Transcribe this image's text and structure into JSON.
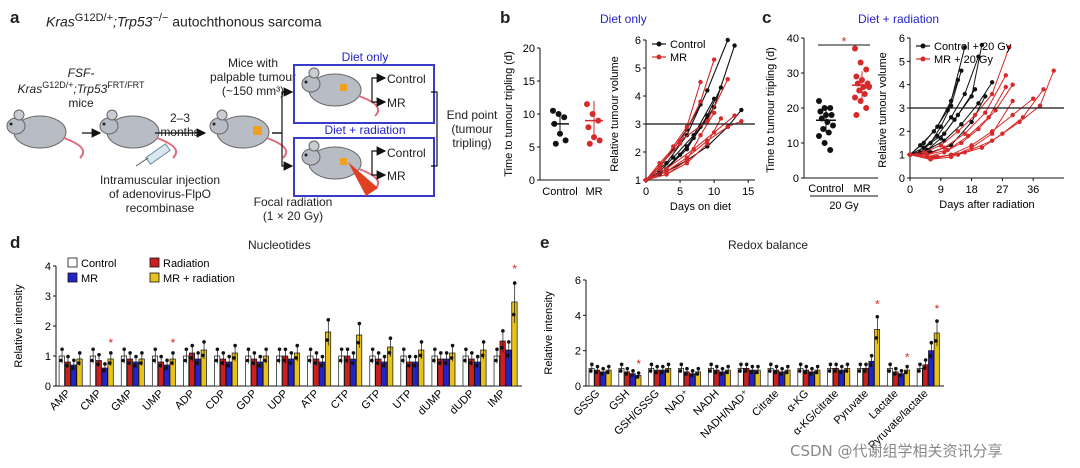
{
  "panel_a": {
    "label": "a",
    "title_prefix": "Kras",
    "title_sup1": "G12D/+",
    "title_mid": ";Trp53",
    "title_sup2": "−/−",
    "title_suffix": " autochthonous sarcoma",
    "mouse_line1_a": "FSF-Kras",
    "mouse_line1_sup1": "G12D/+",
    "mouse_line1_b": ";Trp53",
    "mouse_line1_sup2": "FRT/FRT",
    "mouse_line2": "mice",
    "arrow_label_1": "2–3",
    "arrow_label_2": "months",
    "injection_1": "Intramuscular injection",
    "injection_2": "of adenovirus-FlpO",
    "injection_3": "recombinase",
    "palpable_1": "Mice with",
    "palpable_2": "palpable tumour",
    "palpable_3": "(~150 mm³)",
    "focal_1": "Focal radiation",
    "focal_2": "(1 × 20 Gy)",
    "diet_only": "Diet only",
    "diet_radiation": "Diet + radiation",
    "control": "Control",
    "mr": "MR",
    "end_1": "End point",
    "end_2": "(tumour",
    "end_3": "tripling)"
  },
  "panel_b": {
    "label": "b",
    "title": "Diet only",
    "scatter_ylabel": "Time to tumour tripling (d)",
    "scatter_yticks": [
      "0",
      "5",
      "10",
      "15",
      "20"
    ],
    "scatter_xticks": [
      "Control",
      "MR"
    ],
    "line_ylabel": "Relative tumour volume",
    "line_yticks": [
      "1",
      "2",
      "3",
      "4",
      "5",
      "6"
    ],
    "line_xticks": [
      "0",
      "5",
      "10",
      "15"
    ],
    "line_xlabel": "Days on diet",
    "legend": [
      "Control",
      "MR"
    ]
  },
  "panel_c": {
    "label": "c",
    "title": "Diet + radiation",
    "scatter_ylabel": "Time to tumour tripling (d)",
    "scatter_yticks": [
      "0",
      "10",
      "20",
      "30",
      "40"
    ],
    "scatter_xticks": [
      "Control",
      "MR"
    ],
    "scatter_sub": "20 Gy",
    "star": "*",
    "line_ylabel": "Relative tumour volume",
    "line_yticks": [
      "0",
      "1",
      "2",
      "3",
      "4",
      "5",
      "6"
    ],
    "line_xticks": [
      "0",
      "9",
      "18",
      "27",
      "36"
    ],
    "line_xlabel": "Days after radiation",
    "legend": [
      "Control + 20 Gy",
      "MR + 20 Gy"
    ]
  },
  "panel_d": {
    "label": "d",
    "title": "Nucleotides",
    "ylabel": "Relative intensity",
    "yticks": [
      "0",
      "1",
      "2",
      "3",
      "4"
    ],
    "legend": [
      "Control",
      "Radiation",
      "MR",
      "MR + radiation"
    ],
    "categories": [
      "AMP",
      "CMP",
      "GMP",
      "UMP",
      "ADP",
      "CDP",
      "GDP",
      "UDP",
      "ATP",
      "CTP",
      "GTP",
      "UTP",
      "dUMP",
      "dUDP",
      "IMP"
    ]
  },
  "panel_e": {
    "label": "e",
    "title": "Redox balance",
    "ylabel": "Relative intensity",
    "yticks": [
      "0",
      "2",
      "4",
      "6"
    ],
    "categories": [
      "GSSG",
      "GSH",
      "GSH/GSSG",
      "NAD⁺",
      "NADH",
      "NADH/NAD⁺",
      "Citrate",
      "α-KG",
      "α-KG/citrate",
      "Pyruvate",
      "Lactate",
      "Pyruvate/lactate"
    ]
  },
  "watermark": "CSDN @代谢组学相关资讯分享",
  "colors": {
    "control": "#ffffff",
    "radiation": "#cc1f1f",
    "mr": "#2323cc",
    "mr_radiation": "#e8c21a",
    "control_line": "#111111",
    "mr_line": "#d62a2a",
    "box_blue": "#3a3ac8"
  },
  "chart_data": [
    {
      "type": "scatter",
      "panel": "b-left",
      "title": "Diet only",
      "categories": [
        "Control",
        "MR"
      ],
      "ylabel": "Time to tumour tripling (d)",
      "ylim": [
        0,
        20
      ],
      "series": [
        {
          "name": "Control",
          "values": [
            10.5,
            10,
            9.5,
            8.5,
            7,
            6,
            5.5
          ],
          "mean": 8.5,
          "sd": 1.8
        },
        {
          "name": "MR",
          "values": [
            11.5,
            10,
            9,
            8,
            6.5,
            6,
            5.5
          ],
          "mean": 9,
          "sd": 3
        }
      ]
    },
    {
      "type": "line",
      "panel": "b-right",
      "xlabel": "Days on diet",
      "ylabel": "Relative tumour volume",
      "xlim": [
        0,
        16
      ],
      "ylim": [
        0.7,
        6.2
      ],
      "reference_y": 3,
      "series": [
        {
          "name": "Control",
          "x": [
            0,
            3,
            6,
            9,
            12
          ],
          "y": [
            1,
            1.6,
            2.6,
            4.2,
            6
          ]
        },
        {
          "name": "Control",
          "x": [
            0,
            2,
            4,
            6,
            8
          ],
          "y": [
            1,
            1.5,
            2.1,
            2.8,
            3.7
          ]
        },
        {
          "name": "Control",
          "x": [
            0,
            3,
            6,
            9,
            11
          ],
          "y": [
            1,
            1.4,
            2.1,
            3.3,
            4.3
          ]
        },
        {
          "name": "Control",
          "x": [
            0,
            2,
            5,
            7,
            9
          ],
          "y": [
            1,
            1.2,
            1.9,
            2.5,
            3.2
          ]
        },
        {
          "name": "Control",
          "x": [
            0,
            3,
            6,
            9,
            12,
            14
          ],
          "y": [
            1,
            1.3,
            1.7,
            2.2,
            2.9,
            3.5
          ]
        },
        {
          "name": "Control",
          "x": [
            0,
            2,
            4,
            7,
            10
          ],
          "y": [
            1,
            1.3,
            1.8,
            2.6,
            3.9
          ]
        },
        {
          "name": "Control",
          "x": [
            0,
            3,
            6,
            8,
            10,
            13
          ],
          "y": [
            1,
            1.4,
            2.2,
            2.9,
            3.6,
            5.8
          ]
        },
        {
          "name": "MR",
          "x": [
            0,
            3,
            6,
            9,
            12,
            14
          ],
          "y": [
            1,
            1.3,
            1.8,
            2.4,
            2.9,
            3.1
          ]
        },
        {
          "name": "MR",
          "x": [
            0,
            2,
            5,
            8,
            10
          ],
          "y": [
            1,
            1.5,
            2.3,
            3.8,
            5.3
          ]
        },
        {
          "name": "MR",
          "x": [
            0,
            3,
            6,
            9,
            11
          ],
          "y": [
            1,
            1.2,
            1.6,
            2.3,
            3.2
          ]
        },
        {
          "name": "MR",
          "x": [
            0,
            2,
            4,
            6,
            8
          ],
          "y": [
            1,
            1.4,
            2.2,
            2.9,
            4.5
          ]
        },
        {
          "name": "MR",
          "x": [
            0,
            3,
            7,
            10,
            13
          ],
          "y": [
            1,
            1.4,
            2.1,
            2.7,
            3.3
          ]
        },
        {
          "name": "MR",
          "x": [
            0,
            2,
            5,
            9,
            12
          ],
          "y": [
            1,
            1.6,
            2.4,
            3.1,
            4.6
          ]
        },
        {
          "name": "MR",
          "x": [
            0,
            3,
            6,
            8,
            10
          ],
          "y": [
            1,
            1.2,
            1.7,
            2.6,
            3.4
          ]
        }
      ]
    },
    {
      "type": "scatter",
      "panel": "c-left",
      "title": "Diet + radiation",
      "categories": [
        "Control",
        "MR"
      ],
      "ylabel": "Time to tumour tripling (d)",
      "ylim": [
        0,
        40
      ],
      "series": [
        {
          "name": "Control",
          "values": [
            22,
            20,
            20,
            19,
            18,
            18,
            17,
            16,
            15,
            14,
            13,
            12,
            10,
            8
          ],
          "mean": 16.5,
          "sd": 3.5
        },
        {
          "name": "MR",
          "values": [
            37,
            33,
            31,
            29,
            28,
            27,
            27,
            26,
            26,
            25,
            24,
            23,
            22,
            20,
            18
          ],
          "mean": 26.5,
          "sd": 4
        }
      ]
    },
    {
      "type": "line",
      "panel": "c-right",
      "xlabel": "Days after radiation",
      "ylabel": "Relative tumour volume",
      "xlim": [
        0,
        45
      ],
      "ylim": [
        0,
        6.2
      ],
      "reference_y": 3,
      "series": [
        {
          "name": "Control + 20 Gy",
          "x": [
            0,
            4,
            8,
            12,
            16,
            20
          ],
          "y": [
            1,
            1.3,
            1.8,
            2.6,
            3.6,
            5.2
          ]
        },
        {
          "name": "Control + 20 Gy",
          "x": [
            0,
            3,
            6,
            9,
            12,
            15
          ],
          "y": [
            1,
            1.1,
            1.5,
            2.2,
            3.1,
            4.6
          ]
        },
        {
          "name": "Control + 20 Gy",
          "x": [
            0,
            5,
            10,
            15,
            20,
            24
          ],
          "y": [
            1,
            1.2,
            1.6,
            2.3,
            3.2,
            4.1
          ]
        },
        {
          "name": "Control + 20 Gy",
          "x": [
            0,
            4,
            8,
            12,
            16
          ],
          "y": [
            1,
            1.5,
            2.2,
            3.3,
            5.6
          ]
        },
        {
          "name": "Control + 20 Gy",
          "x": [
            0,
            6,
            12,
            18,
            22
          ],
          "y": [
            1,
            1.1,
            1.4,
            2.4,
            3.5
          ]
        },
        {
          "name": "Control + 20 Gy",
          "x": [
            0,
            3,
            7,
            11,
            14
          ],
          "y": [
            1,
            1.4,
            2,
            2.9,
            4.2
          ]
        },
        {
          "name": "Control + 20 Gy",
          "x": [
            0,
            5,
            9,
            13,
            18,
            21
          ],
          "y": [
            1,
            1.2,
            1.7,
            2.5,
            3.5,
            5.7
          ]
        },
        {
          "name": "Control + 20 Gy",
          "x": [
            0,
            4,
            10,
            14,
            19
          ],
          "y": [
            1,
            1.3,
            1.9,
            2.7,
            3.8
          ]
        },
        {
          "name": "MR + 20 Gy",
          "x": [
            0,
            5,
            10,
            15,
            20,
            25,
            30
          ],
          "y": [
            1,
            0.9,
            1.1,
            1.5,
            2.1,
            2.9,
            4
          ]
        },
        {
          "name": "MR + 20 Gy",
          "x": [
            0,
            6,
            12,
            18,
            24,
            30,
            36
          ],
          "y": [
            1,
            0.8,
            1,
            1.4,
            2,
            2.7,
            3.4
          ]
        },
        {
          "name": "MR + 20 Gy",
          "x": [
            0,
            5,
            10,
            16,
            22,
            28
          ],
          "y": [
            1,
            1,
            1.3,
            1.9,
            2.8,
            4.4
          ]
        },
        {
          "name": "MR + 20 Gy",
          "x": [
            0,
            7,
            14,
            21,
            27,
            33,
            39
          ],
          "y": [
            1,
            0.9,
            1,
            1.3,
            1.9,
            2.6,
            3.8
          ]
        },
        {
          "name": "MR + 20 Gy",
          "x": [
            0,
            4,
            9,
            14,
            19,
            24,
            29
          ],
          "y": [
            1,
            1.1,
            1.4,
            2,
            2.7,
            3.6,
            5.6
          ]
        },
        {
          "name": "MR + 20 Gy",
          "x": [
            0,
            6,
            12,
            18,
            24,
            30
          ],
          "y": [
            1,
            0.8,
            0.9,
            1.3,
            1.9,
            3.3
          ]
        },
        {
          "name": "MR + 20 Gy",
          "x": [
            0,
            8,
            16,
            24,
            32,
            38,
            42
          ],
          "y": [
            1,
            0.9,
            1.1,
            1.6,
            2.4,
            3.1,
            4.6
          ]
        },
        {
          "name": "MR + 20 Gy",
          "x": [
            0,
            5,
            11,
            17,
            23,
            28
          ],
          "y": [
            1,
            1,
            1.2,
            1.8,
            2.6,
            3.9
          ]
        }
      ]
    },
    {
      "type": "bar",
      "panel": "d",
      "title": "Nucleotides",
      "ylabel": "Relative intensity",
      "ylim": [
        0,
        4
      ],
      "categories": [
        "AMP",
        "CMP",
        "GMP",
        "UMP",
        "ADP",
        "CDP",
        "GDP",
        "UDP",
        "ATP",
        "CTP",
        "GTP",
        "UTP",
        "dUMP",
        "dUDP",
        "IMP"
      ],
      "series": [
        {
          "name": "Control",
          "values": [
            1,
            1,
            1,
            1,
            1,
            1,
            1,
            1,
            1,
            1,
            1,
            1,
            1,
            1,
            1
          ]
        },
        {
          "name": "Radiation",
          "values": [
            0.8,
            0.85,
            0.9,
            0.8,
            1.1,
            0.9,
            0.9,
            1.0,
            0.9,
            1.0,
            0.9,
            0.8,
            0.9,
            0.9,
            1.5
          ]
        },
        {
          "name": "MR",
          "values": [
            0.7,
            0.6,
            0.8,
            0.7,
            0.9,
            0.8,
            0.8,
            0.9,
            0.8,
            0.9,
            0.8,
            0.8,
            0.9,
            0.8,
            1.2
          ]
        },
        {
          "name": "MR + radiation",
          "values": [
            0.9,
            0.9,
            0.9,
            0.9,
            1.2,
            1.1,
            1.0,
            1.1,
            1.8,
            1.7,
            1.3,
            1.2,
            1.1,
            1.2,
            2.8
          ]
        }
      ],
      "significance": [
        "",
        "*",
        "",
        "*",
        "",
        "",
        "",
        "",
        "",
        "",
        "",
        "",
        "",
        "",
        "*"
      ]
    },
    {
      "type": "bar",
      "panel": "e",
      "title": "Redox balance",
      "ylabel": "Relative intensity",
      "ylim": [
        0,
        6
      ],
      "categories": [
        "GSSG",
        "GSH",
        "GSH/GSSG",
        "NAD⁺",
        "NADH",
        "NADH/NAD⁺",
        "Citrate",
        "α-KG",
        "α-KG/citrate",
        "Pyruvate",
        "Lactate",
        "Pyruvate/lactate"
      ],
      "series": [
        {
          "name": "Control",
          "values": [
            1,
            1,
            1,
            1,
            1,
            1,
            1,
            1,
            1,
            1,
            1,
            1
          ]
        },
        {
          "name": "Radiation",
          "values": [
            0.9,
            0.8,
            0.9,
            0.8,
            0.9,
            1.0,
            0.9,
            0.9,
            1.0,
            1.0,
            0.8,
            1.2
          ]
        },
        {
          "name": "MR",
          "values": [
            0.8,
            0.7,
            0.9,
            0.7,
            0.8,
            0.9,
            0.8,
            0.8,
            0.9,
            1.4,
            0.7,
            2.0
          ]
        },
        {
          "name": "MR + radiation",
          "values": [
            0.9,
            0.6,
            1.0,
            0.8,
            0.9,
            0.9,
            0.9,
            0.9,
            1.0,
            3.2,
            0.9,
            3.0
          ]
        }
      ],
      "significance": [
        "",
        "*",
        "",
        "",
        "",
        "",
        "",
        "",
        "",
        "*",
        "*",
        "*"
      ]
    }
  ]
}
